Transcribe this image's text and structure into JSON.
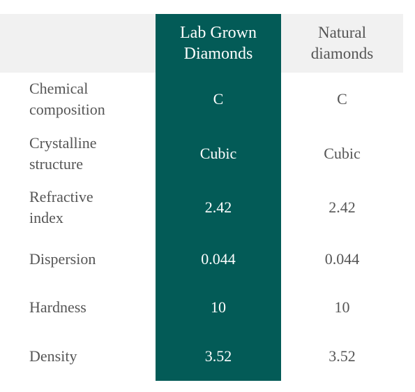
{
  "table": {
    "headers": {
      "lab_line1": "Lab Grown",
      "lab_line2": "Diamonds",
      "natural_line1": "Natural",
      "natural_line2": "diamonds"
    },
    "rows": [
      {
        "label_line1": "Chemical",
        "label_line2": "composition",
        "lab": "C",
        "natural": "C"
      },
      {
        "label_line1": "Crystalline",
        "label_line2": "structure",
        "lab": "Cubic",
        "natural": "Cubic"
      },
      {
        "label_line1": "Refractive",
        "label_line2": "index",
        "lab": "2.42",
        "natural": "2.42"
      },
      {
        "label_line1": "Dispersion",
        "label_line2": "",
        "lab": "0.044",
        "natural": "0.044"
      },
      {
        "label_line1": "Hardness",
        "label_line2": "",
        "lab": "10",
        "natural": "10"
      },
      {
        "label_line1": "Density",
        "label_line2": "",
        "lab": "3.52",
        "natural": "3.52"
      }
    ]
  },
  "colors": {
    "highlight": "#035b57",
    "header_band": "#f1f1f1",
    "text": "#555555"
  }
}
